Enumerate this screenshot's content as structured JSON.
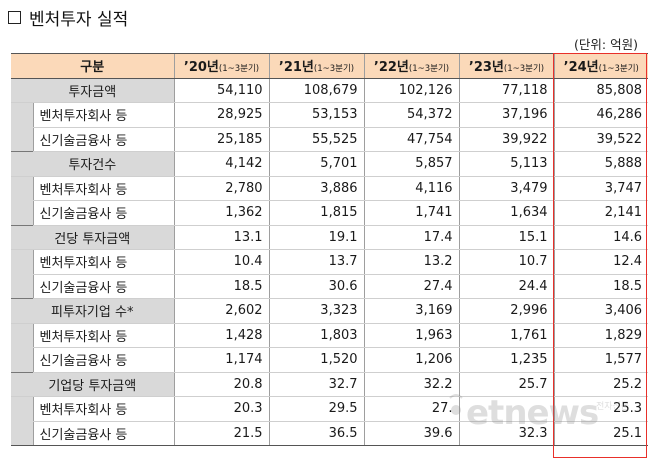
{
  "title": "벤처투자 실적",
  "unit": "(단위: 억원)",
  "columns": {
    "label": "구분",
    "years": [
      {
        "year": "’20년",
        "sub": "(1~3분기)"
      },
      {
        "year": "’21년",
        "sub": "(1~3분기)"
      },
      {
        "year": "’22년",
        "sub": "(1~3분기)"
      },
      {
        "year": "’23년",
        "sub": "(1~3분기)"
      },
      {
        "year": "’24년",
        "sub": "(1~3분기)"
      }
    ]
  },
  "groups": [
    {
      "label": "투자금액",
      "values": [
        "54,110",
        "108,679",
        "102,126",
        "77,118",
        "85,808"
      ],
      "rows": [
        {
          "label": "벤처투자회사 등",
          "values": [
            "28,925",
            "53,153",
            "54,372",
            "37,196",
            "46,286"
          ]
        },
        {
          "label": "신기술금융사 등",
          "values": [
            "25,185",
            "55,525",
            "47,754",
            "39,922",
            "39,522"
          ]
        }
      ]
    },
    {
      "label": "투자건수",
      "values": [
        "4,142",
        "5,701",
        "5,857",
        "5,113",
        "5,888"
      ],
      "rows": [
        {
          "label": "벤처투자회사 등",
          "values": [
            "2,780",
            "3,886",
            "4,116",
            "3,479",
            "3,747"
          ]
        },
        {
          "label": "신기술금융사 등",
          "values": [
            "1,362",
            "1,815",
            "1,741",
            "1,634",
            "2,141"
          ]
        }
      ]
    },
    {
      "label": "건당 투자금액",
      "values": [
        "13.1",
        "19.1",
        "17.4",
        "15.1",
        "14.6"
      ],
      "rows": [
        {
          "label": "벤처투자회사 등",
          "values": [
            "10.4",
            "13.7",
            "13.2",
            "10.7",
            "12.4"
          ]
        },
        {
          "label": "신기술금융사 등",
          "values": [
            "18.5",
            "30.6",
            "27.4",
            "24.4",
            "18.5"
          ]
        }
      ]
    },
    {
      "label": "피투자기업 수*",
      "values": [
        "2,602",
        "3,323",
        "3,169",
        "2,996",
        "3,406"
      ],
      "rows": [
        {
          "label": "벤처투자회사 등",
          "values": [
            "1,428",
            "1,803",
            "1,963",
            "1,761",
            "1,829"
          ]
        },
        {
          "label": "신기술금융사 등",
          "values": [
            "1,174",
            "1,520",
            "1,206",
            "1,235",
            "1,577"
          ]
        }
      ]
    },
    {
      "label": "기업당 투자금액",
      "values": [
        "20.8",
        "32.7",
        "32.2",
        "25.7",
        "25.2"
      ],
      "rows": [
        {
          "label": "벤처투자회사 등",
          "values": [
            "20.3",
            "29.5",
            "27.",
            "",
            "25.3"
          ]
        },
        {
          "label": "신기술금융사 등",
          "values": [
            "21.5",
            "36.5",
            "39.6",
            "32.3",
            "25.1"
          ]
        }
      ]
    }
  ],
  "watermark": {
    "text": "etnews",
    "sub": "전자신문"
  },
  "colors": {
    "header_bg": "#fbd9b9",
    "label_bg": "#d9d9d9",
    "highlight": "#e8302a"
  }
}
